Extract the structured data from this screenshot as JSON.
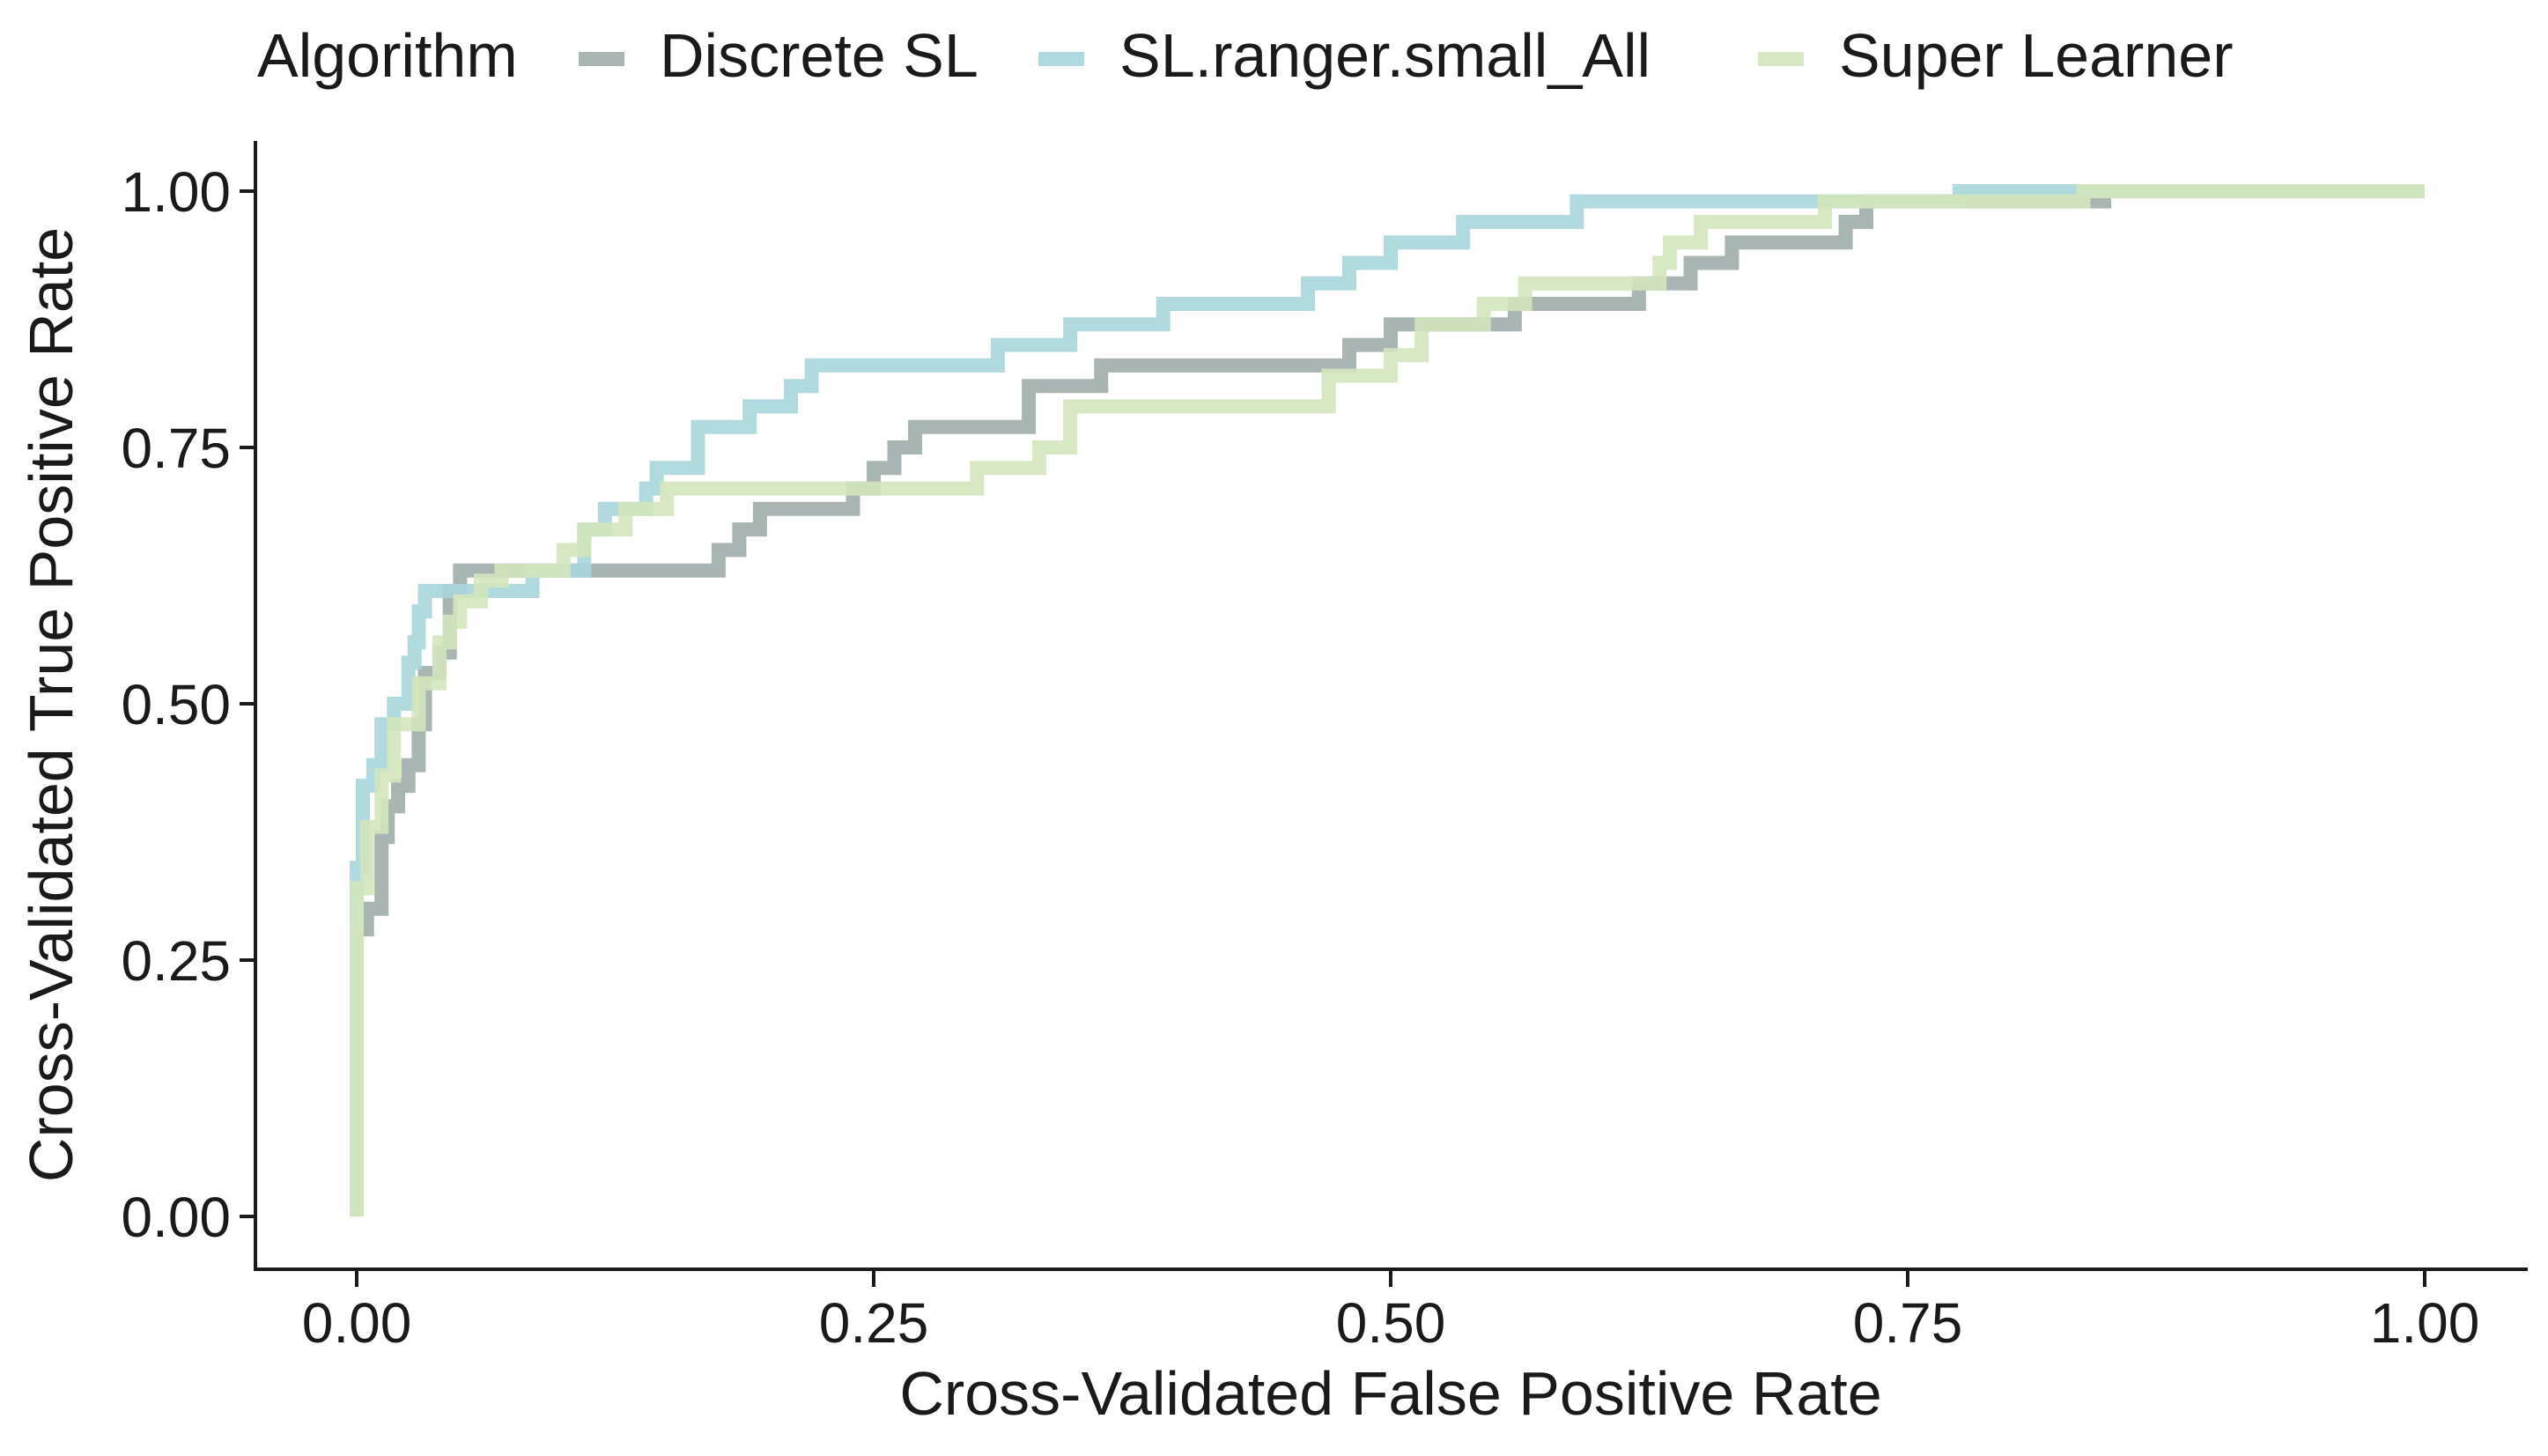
{
  "chart_data": {
    "type": "line",
    "title": "",
    "xlabel": "Cross-Validated False Positive Rate",
    "ylabel": "Cross-Validated True Positive Rate",
    "xlim": [
      0,
      1
    ],
    "ylim": [
      0,
      1
    ],
    "x_ticks": [
      "0.00",
      "0.25",
      "0.50",
      "0.75",
      "1.00"
    ],
    "y_ticks": [
      "0.00",
      "0.25",
      "0.50",
      "0.75",
      "1.00"
    ],
    "legend_title": "Algorithm",
    "legend_position": "top",
    "grid": false,
    "series": [
      {
        "name": "Discrete SL",
        "color": "#9fadab",
        "points": [
          [
            0,
            0
          ],
          [
            0,
            0.28
          ],
          [
            0.005,
            0.28
          ],
          [
            0.005,
            0.3
          ],
          [
            0.012,
            0.3
          ],
          [
            0.012,
            0.37
          ],
          [
            0.015,
            0.37
          ],
          [
            0.015,
            0.4
          ],
          [
            0.02,
            0.4
          ],
          [
            0.02,
            0.42
          ],
          [
            0.025,
            0.42
          ],
          [
            0.025,
            0.44
          ],
          [
            0.03,
            0.44
          ],
          [
            0.03,
            0.48
          ],
          [
            0.033,
            0.48
          ],
          [
            0.033,
            0.53
          ],
          [
            0.04,
            0.53
          ],
          [
            0.04,
            0.55
          ],
          [
            0.045,
            0.55
          ],
          [
            0.045,
            0.61
          ],
          [
            0.05,
            0.61
          ],
          [
            0.05,
            0.63
          ],
          [
            0.175,
            0.63
          ],
          [
            0.175,
            0.65
          ],
          [
            0.185,
            0.65
          ],
          [
            0.185,
            0.67
          ],
          [
            0.195,
            0.67
          ],
          [
            0.195,
            0.69
          ],
          [
            0.24,
            0.69
          ],
          [
            0.24,
            0.71
          ],
          [
            0.25,
            0.71
          ],
          [
            0.25,
            0.73
          ],
          [
            0.26,
            0.73
          ],
          [
            0.26,
            0.75
          ],
          [
            0.27,
            0.75
          ],
          [
            0.27,
            0.77
          ],
          [
            0.325,
            0.77
          ],
          [
            0.325,
            0.81
          ],
          [
            0.36,
            0.81
          ],
          [
            0.36,
            0.83
          ],
          [
            0.48,
            0.83
          ],
          [
            0.48,
            0.85
          ],
          [
            0.5,
            0.85
          ],
          [
            0.5,
            0.87
          ],
          [
            0.56,
            0.87
          ],
          [
            0.56,
            0.89
          ],
          [
            0.62,
            0.89
          ],
          [
            0.62,
            0.91
          ],
          [
            0.645,
            0.91
          ],
          [
            0.645,
            0.93
          ],
          [
            0.665,
            0.93
          ],
          [
            0.665,
            0.95
          ],
          [
            0.72,
            0.95
          ],
          [
            0.72,
            0.97
          ],
          [
            0.73,
            0.97
          ],
          [
            0.73,
            0.99
          ],
          [
            0.845,
            0.99
          ],
          [
            0.845,
            1.0
          ],
          [
            1.0,
            1.0
          ]
        ]
      },
      {
        "name": "SL.ranger.small_All",
        "color": "#a9d6dc",
        "points": [
          [
            0,
            0
          ],
          [
            0,
            0.34
          ],
          [
            0.003,
            0.34
          ],
          [
            0.003,
            0.42
          ],
          [
            0.008,
            0.42
          ],
          [
            0.008,
            0.44
          ],
          [
            0.012,
            0.44
          ],
          [
            0.012,
            0.48
          ],
          [
            0.018,
            0.48
          ],
          [
            0.018,
            0.5
          ],
          [
            0.025,
            0.5
          ],
          [
            0.025,
            0.54
          ],
          [
            0.028,
            0.54
          ],
          [
            0.028,
            0.56
          ],
          [
            0.03,
            0.56
          ],
          [
            0.03,
            0.59
          ],
          [
            0.033,
            0.59
          ],
          [
            0.033,
            0.61
          ],
          [
            0.085,
            0.61
          ],
          [
            0.085,
            0.63
          ],
          [
            0.11,
            0.63
          ],
          [
            0.11,
            0.67
          ],
          [
            0.12,
            0.67
          ],
          [
            0.12,
            0.69
          ],
          [
            0.14,
            0.69
          ],
          [
            0.14,
            0.71
          ],
          [
            0.145,
            0.71
          ],
          [
            0.145,
            0.73
          ],
          [
            0.165,
            0.73
          ],
          [
            0.165,
            0.77
          ],
          [
            0.19,
            0.77
          ],
          [
            0.19,
            0.79
          ],
          [
            0.21,
            0.79
          ],
          [
            0.21,
            0.81
          ],
          [
            0.22,
            0.81
          ],
          [
            0.22,
            0.83
          ],
          [
            0.31,
            0.83
          ],
          [
            0.31,
            0.85
          ],
          [
            0.345,
            0.85
          ],
          [
            0.345,
            0.87
          ],
          [
            0.39,
            0.87
          ],
          [
            0.39,
            0.89
          ],
          [
            0.46,
            0.89
          ],
          [
            0.46,
            0.91
          ],
          [
            0.48,
            0.91
          ],
          [
            0.48,
            0.93
          ],
          [
            0.5,
            0.93
          ],
          [
            0.5,
            0.95
          ],
          [
            0.535,
            0.95
          ],
          [
            0.535,
            0.97
          ],
          [
            0.59,
            0.97
          ],
          [
            0.59,
            0.99
          ],
          [
            0.775,
            0.99
          ],
          [
            0.775,
            1.0
          ],
          [
            1.0,
            1.0
          ]
        ]
      },
      {
        "name": "Super Learner",
        "color": "#d3e5bd",
        "points": [
          [
            0,
            0
          ],
          [
            0,
            0.32
          ],
          [
            0.005,
            0.32
          ],
          [
            0.005,
            0.38
          ],
          [
            0.012,
            0.38
          ],
          [
            0.012,
            0.43
          ],
          [
            0.018,
            0.43
          ],
          [
            0.018,
            0.48
          ],
          [
            0.03,
            0.48
          ],
          [
            0.03,
            0.52
          ],
          [
            0.04,
            0.52
          ],
          [
            0.04,
            0.56
          ],
          [
            0.045,
            0.56
          ],
          [
            0.045,
            0.58
          ],
          [
            0.05,
            0.58
          ],
          [
            0.05,
            0.6
          ],
          [
            0.06,
            0.6
          ],
          [
            0.06,
            0.62
          ],
          [
            0.07,
            0.62
          ],
          [
            0.07,
            0.63
          ],
          [
            0.1,
            0.63
          ],
          [
            0.1,
            0.65
          ],
          [
            0.11,
            0.65
          ],
          [
            0.11,
            0.67
          ],
          [
            0.13,
            0.67
          ],
          [
            0.13,
            0.69
          ],
          [
            0.15,
            0.69
          ],
          [
            0.15,
            0.71
          ],
          [
            0.3,
            0.71
          ],
          [
            0.3,
            0.73
          ],
          [
            0.33,
            0.73
          ],
          [
            0.33,
            0.75
          ],
          [
            0.345,
            0.75
          ],
          [
            0.345,
            0.79
          ],
          [
            0.47,
            0.79
          ],
          [
            0.47,
            0.82
          ],
          [
            0.5,
            0.82
          ],
          [
            0.5,
            0.84
          ],
          [
            0.515,
            0.84
          ],
          [
            0.515,
            0.87
          ],
          [
            0.545,
            0.87
          ],
          [
            0.545,
            0.89
          ],
          [
            0.565,
            0.89
          ],
          [
            0.565,
            0.91
          ],
          [
            0.63,
            0.91
          ],
          [
            0.63,
            0.93
          ],
          [
            0.635,
            0.93
          ],
          [
            0.635,
            0.95
          ],
          [
            0.65,
            0.95
          ],
          [
            0.65,
            0.97
          ],
          [
            0.71,
            0.97
          ],
          [
            0.71,
            0.99
          ],
          [
            0.835,
            0.99
          ],
          [
            0.835,
            1.0
          ],
          [
            1.0,
            1.0
          ]
        ]
      }
    ]
  }
}
